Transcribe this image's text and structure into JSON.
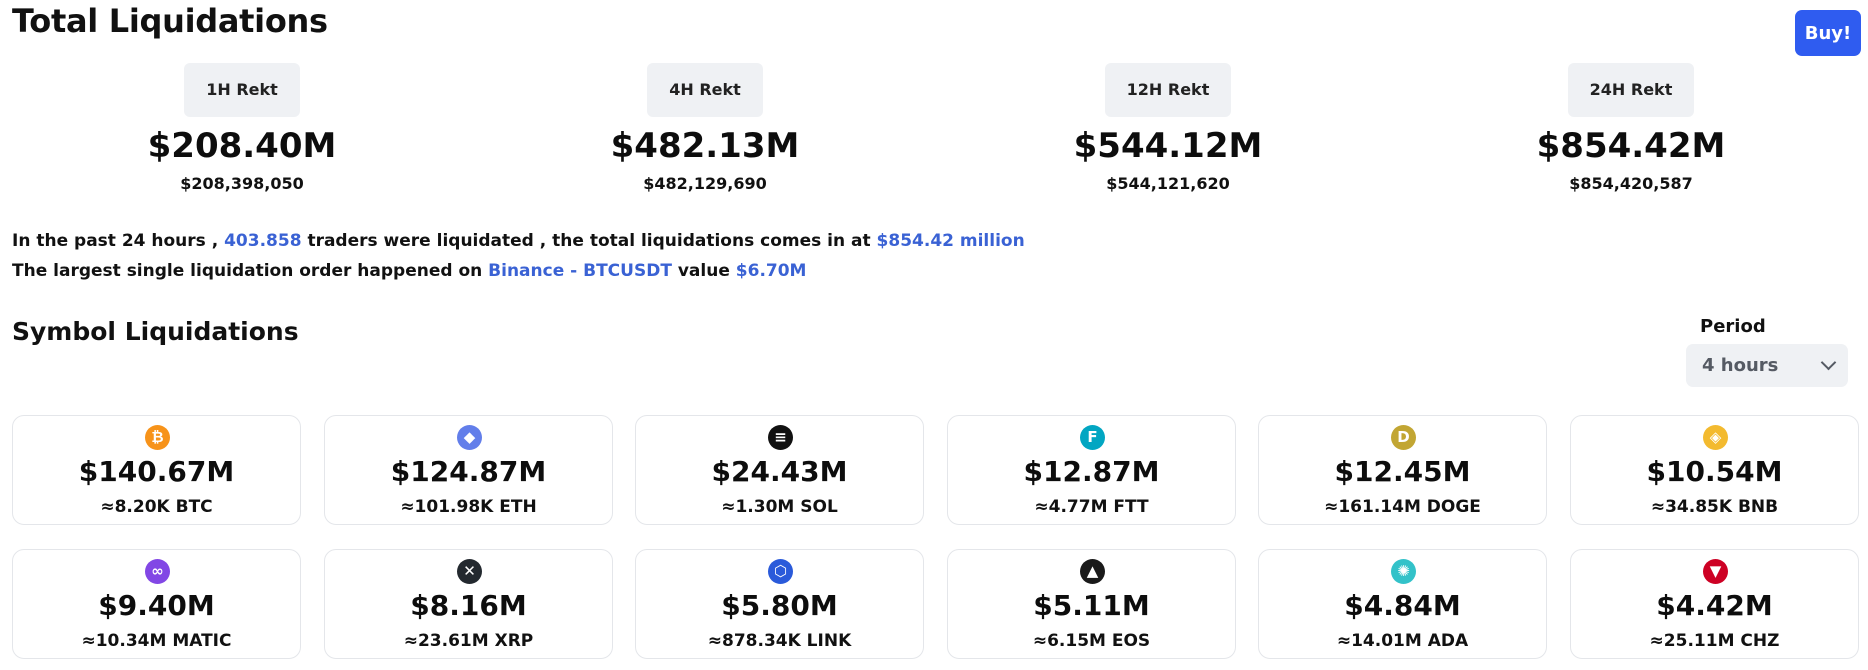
{
  "header": {
    "title": "Total Liquidations",
    "buy_label": "Buy!"
  },
  "rekt": [
    {
      "label": "1H Rekt",
      "amount": "$208.40M",
      "exact": "$208,398,050"
    },
    {
      "label": "4H Rekt",
      "amount": "$482.13M",
      "exact": "$482,129,690"
    },
    {
      "label": "12H Rekt",
      "amount": "$544.12M",
      "exact": "$544,121,620"
    },
    {
      "label": "24H Rekt",
      "amount": "$854.42M",
      "exact": "$854,420,587"
    }
  ],
  "summary": {
    "line1_a": "In the past 24 hours ,",
    "traders": "403.858",
    "line1_b": "traders were liquidated , the total liquidations comes in at",
    "total": "$854.42 million",
    "line2_a": "The largest single liquidation order happened on",
    "exchange": "Binance - BTCUSDT",
    "line2_b": "value",
    "largest_value": "$6.70M"
  },
  "symbols_section": {
    "title": "Symbol Liquidations",
    "period_label": "Period",
    "period_value": "4 hours"
  },
  "colors": {
    "accent": "#2f5cf0",
    "highlight": "#3a62d4"
  },
  "symbols": [
    {
      "icon": "bitcoin-icon",
      "glyph": "₿",
      "color": "#f7931a",
      "value": "$140.67M",
      "amount": "≈8.20K BTC"
    },
    {
      "icon": "ethereum-icon",
      "glyph": "◆",
      "color": "#627eea",
      "value": "$124.87M",
      "amount": "≈101.98K ETH"
    },
    {
      "icon": "solana-icon",
      "glyph": "≡",
      "color": "#111111",
      "value": "$24.43M",
      "amount": "≈1.30M SOL"
    },
    {
      "icon": "ftx-icon",
      "glyph": "F",
      "color": "#02a6c2",
      "value": "$12.87M",
      "amount": "≈4.77M FTT"
    },
    {
      "icon": "dogecoin-icon",
      "glyph": "D",
      "color": "#c2a633",
      "value": "$12.45M",
      "amount": "≈161.14M DOGE"
    },
    {
      "icon": "binance-coin-icon",
      "glyph": "◈",
      "color": "#f3ba2f",
      "value": "$10.54M",
      "amount": "≈34.85K BNB"
    },
    {
      "icon": "polygon-icon",
      "glyph": "∞",
      "color": "#8247e5",
      "value": "$9.40M",
      "amount": "≈10.34M MATIC"
    },
    {
      "icon": "xrp-icon",
      "glyph": "✕",
      "color": "#23292f",
      "value": "$8.16M",
      "amount": "≈23.61M XRP"
    },
    {
      "icon": "chainlink-icon",
      "glyph": "⬡",
      "color": "#2a5ada",
      "value": "$5.80M",
      "amount": "≈878.34K LINK"
    },
    {
      "icon": "eos-icon",
      "glyph": "▲",
      "color": "#1a1a1a",
      "value": "$5.11M",
      "amount": "≈6.15M EOS"
    },
    {
      "icon": "cardano-icon",
      "glyph": "✺",
      "color": "#33c2c9",
      "value": "$4.84M",
      "amount": "≈14.01M ADA"
    },
    {
      "icon": "chiliz-icon",
      "glyph": "▼",
      "color": "#cd0124",
      "value": "$4.42M",
      "amount": "≈25.11M CHZ"
    }
  ]
}
